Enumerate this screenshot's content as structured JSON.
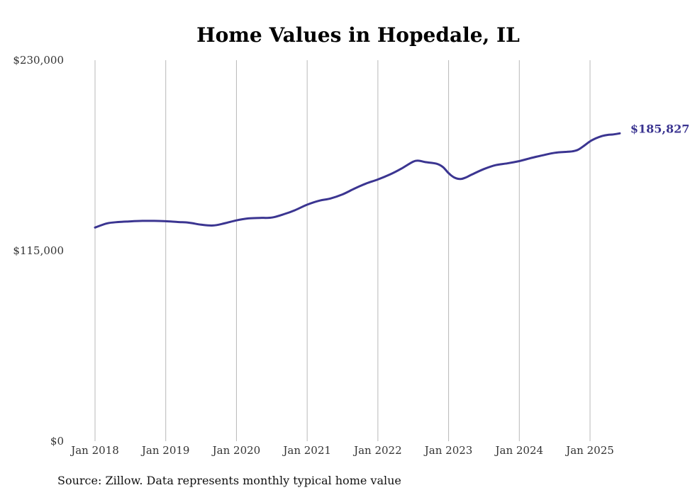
{
  "chart_data": {
    "type": "line",
    "title": "Home Values in Hopedale, IL",
    "xlabel": "",
    "ylabel": "",
    "ylim": [
      0,
      230000
    ],
    "y_ticks": [
      {
        "value": 0,
        "label": "$0"
      },
      {
        "value": 115000,
        "label": "$115,000"
      },
      {
        "value": 230000,
        "label": "$230,000"
      }
    ],
    "x_ticks": [
      {
        "value": 2018.0,
        "label": "Jan 2018"
      },
      {
        "value": 2019.0,
        "label": "Jan 2019"
      },
      {
        "value": 2020.0,
        "label": "Jan 2020"
      },
      {
        "value": 2021.0,
        "label": "Jan 2021"
      },
      {
        "value": 2022.0,
        "label": "Jan 2022"
      },
      {
        "value": 2023.0,
        "label": "Jan 2023"
      },
      {
        "value": 2024.0,
        "label": "Jan 2024"
      },
      {
        "value": 2025.0,
        "label": "Jan 2025"
      }
    ],
    "grid": "vertical",
    "line_color": "#3b3591",
    "end_label": "$185,827",
    "source": "Source: Zillow. Data represents monthly typical home value",
    "series": [
      {
        "x": [
          2018.0,
          2018.17,
          2018.33,
          2018.5,
          2018.67,
          2018.83,
          2019.0,
          2019.17,
          2019.33,
          2019.5,
          2019.67,
          2019.83,
          2020.0,
          2020.17,
          2020.33,
          2020.5,
          2020.67,
          2020.83,
          2021.0,
          2021.17,
          2021.33,
          2021.5,
          2021.67,
          2021.83,
          2022.0,
          2022.17,
          2022.33,
          2022.5,
          2022.58,
          2022.67,
          2022.83,
          2022.92,
          2023.0,
          2023.08,
          2023.17,
          2023.25,
          2023.33,
          2023.5,
          2023.67,
          2023.83,
          2024.0,
          2024.17,
          2024.33,
          2024.5,
          2024.67,
          2024.75,
          2024.83,
          2024.92,
          2025.0,
          2025.08,
          2025.17,
          2025.25,
          2025.33,
          2025.42
        ],
        "y": [
          129000,
          131500,
          132300,
          132700,
          133000,
          133000,
          132800,
          132300,
          131900,
          130700,
          130200,
          131500,
          133300,
          134500,
          134800,
          135000,
          137000,
          139500,
          142800,
          145200,
          146500,
          149000,
          152500,
          155500,
          158000,
          161000,
          164500,
          168800,
          169300,
          168500,
          167500,
          165500,
          161800,
          159200,
          158300,
          159300,
          161000,
          164300,
          166700,
          167700,
          169100,
          171000,
          172600,
          174100,
          174700,
          175000,
          175900,
          178500,
          181000,
          182800,
          184200,
          184900,
          185200,
          185827
        ]
      }
    ]
  }
}
